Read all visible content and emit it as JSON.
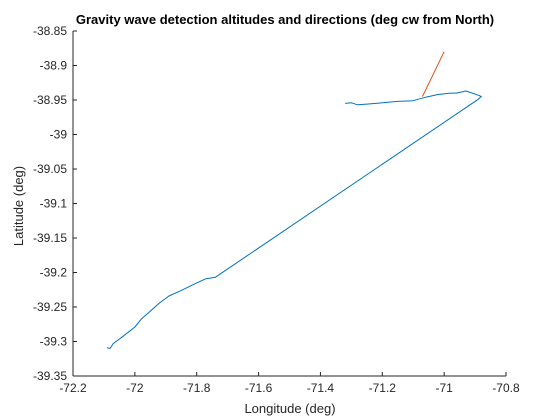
{
  "chart_data": {
    "type": "line",
    "title": "Gravity wave detection altitudes and directions (deg cw from North)",
    "xlabel": "Longitude (deg)",
    "ylabel": "Latitude (deg)",
    "xlim": [
      -72.2,
      -70.8
    ],
    "ylim": [
      -39.35,
      -38.85
    ],
    "xticks": [
      -72.2,
      -72,
      -71.8,
      -71.6,
      -71.4,
      -71.2,
      -71,
      -70.8
    ],
    "xtick_labels": [
      "-72.2",
      "-72",
      "-71.8",
      "-71.6",
      "-71.4",
      "-71.2",
      "-71",
      "-70.8"
    ],
    "yticks": [
      -38.85,
      -38.9,
      -38.95,
      -39,
      -39.05,
      -39.1,
      -39.15,
      -39.2,
      -39.25,
      -39.3,
      -39.35
    ],
    "ytick_labels": [
      "-38.85",
      "-38.9",
      "-38.95",
      "-39",
      "-39.05",
      "-39.1",
      "-39.15",
      "-39.2",
      "-39.25",
      "-39.3",
      "-39.35"
    ],
    "grid": false,
    "series": [
      {
        "color": "#0072BD",
        "x": [
          -72.09,
          -72.08,
          -72.07,
          -72.04,
          -72.0,
          -71.98,
          -71.95,
          -71.92,
          -71.89,
          -71.85,
          -71.8,
          -71.77,
          -71.74,
          -70.89,
          -70.88,
          -70.89,
          -70.93,
          -70.96,
          -70.98,
          -71.02,
          -71.06,
          -71.1,
          -71.15,
          -71.2,
          -71.25,
          -71.28,
          -71.3,
          -71.32
        ],
        "y": [
          -39.309,
          -39.31,
          -39.303,
          -39.293,
          -39.279,
          -39.268,
          -39.256,
          -39.244,
          -39.234,
          -39.226,
          -39.215,
          -39.209,
          -39.207,
          -38.949,
          -38.945,
          -38.943,
          -38.937,
          -38.94,
          -38.94,
          -38.942,
          -38.946,
          -38.951,
          -38.952,
          -38.954,
          -38.956,
          -38.957,
          -38.954,
          -38.955
        ]
      },
      {
        "color": "#D95319",
        "x": [
          -71.07,
          -71.0
        ],
        "y": [
          -38.945,
          -38.88
        ]
      }
    ]
  }
}
